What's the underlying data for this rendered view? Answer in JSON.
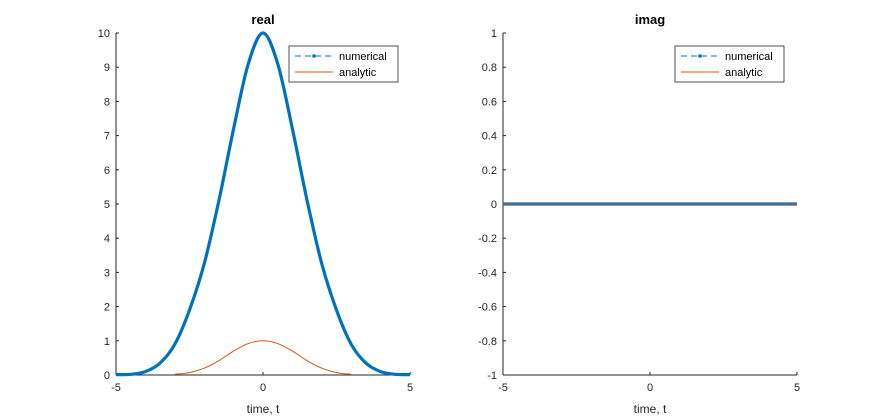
{
  "chart_data": [
    {
      "type": "line",
      "title": "real",
      "xlabel": "time, t",
      "ylabel": "",
      "xlim": [
        -5,
        5
      ],
      "ylim": [
        0,
        10
      ],
      "xticks": [
        -5,
        0,
        5
      ],
      "yticks": [
        0,
        1,
        2,
        3,
        4,
        5,
        6,
        7,
        8,
        9,
        10
      ],
      "grid": false,
      "legend_position": "top-right",
      "series": [
        {
          "name": "numerical",
          "style": "dashed-with-point-markers",
          "color": "#0072BD",
          "x": [
            -5,
            -4.5,
            -4,
            -3.5,
            -3,
            -2.5,
            -2,
            -1.5,
            -1,
            -0.5,
            0,
            0.5,
            1,
            1.5,
            2,
            2.5,
            3,
            3.5,
            4,
            4.5,
            5
          ],
          "values": [
            0.01,
            0.02,
            0.1,
            0.35,
            0.9,
            1.9,
            3.25,
            5.1,
            7.2,
            9.1,
            10,
            9.1,
            7.2,
            5.1,
            3.25,
            1.9,
            0.9,
            0.35,
            0.1,
            0.02,
            0.01
          ]
        },
        {
          "name": "analytic",
          "style": "solid",
          "color": "#D95319",
          "x": [
            -3,
            -2.5,
            -2,
            -1.5,
            -1,
            -0.5,
            0,
            0.5,
            1,
            1.5,
            2,
            2.5,
            3
          ],
          "values": [
            0.02,
            0.07,
            0.2,
            0.42,
            0.7,
            0.92,
            1,
            0.92,
            0.7,
            0.42,
            0.2,
            0.07,
            0.02
          ]
        }
      ]
    },
    {
      "type": "line",
      "title": "imag",
      "xlabel": "time, t",
      "ylabel": "",
      "xlim": [
        -5,
        5
      ],
      "ylim": [
        -1,
        1
      ],
      "xticks": [
        -5,
        0,
        5
      ],
      "yticks": [
        -1,
        -0.8,
        -0.6,
        -0.4,
        -0.2,
        0,
        0.2,
        0.4,
        0.6,
        0.8,
        1
      ],
      "grid": false,
      "legend_position": "top-right",
      "series": [
        {
          "name": "numerical",
          "style": "dashed-with-point-markers",
          "color": "#0072BD",
          "x": [
            -5,
            5
          ],
          "values": [
            0,
            0
          ]
        },
        {
          "name": "analytic",
          "style": "solid",
          "color": "#D95319",
          "x": [
            -5,
            5
          ],
          "values": [
            0,
            0
          ]
        }
      ]
    }
  ]
}
